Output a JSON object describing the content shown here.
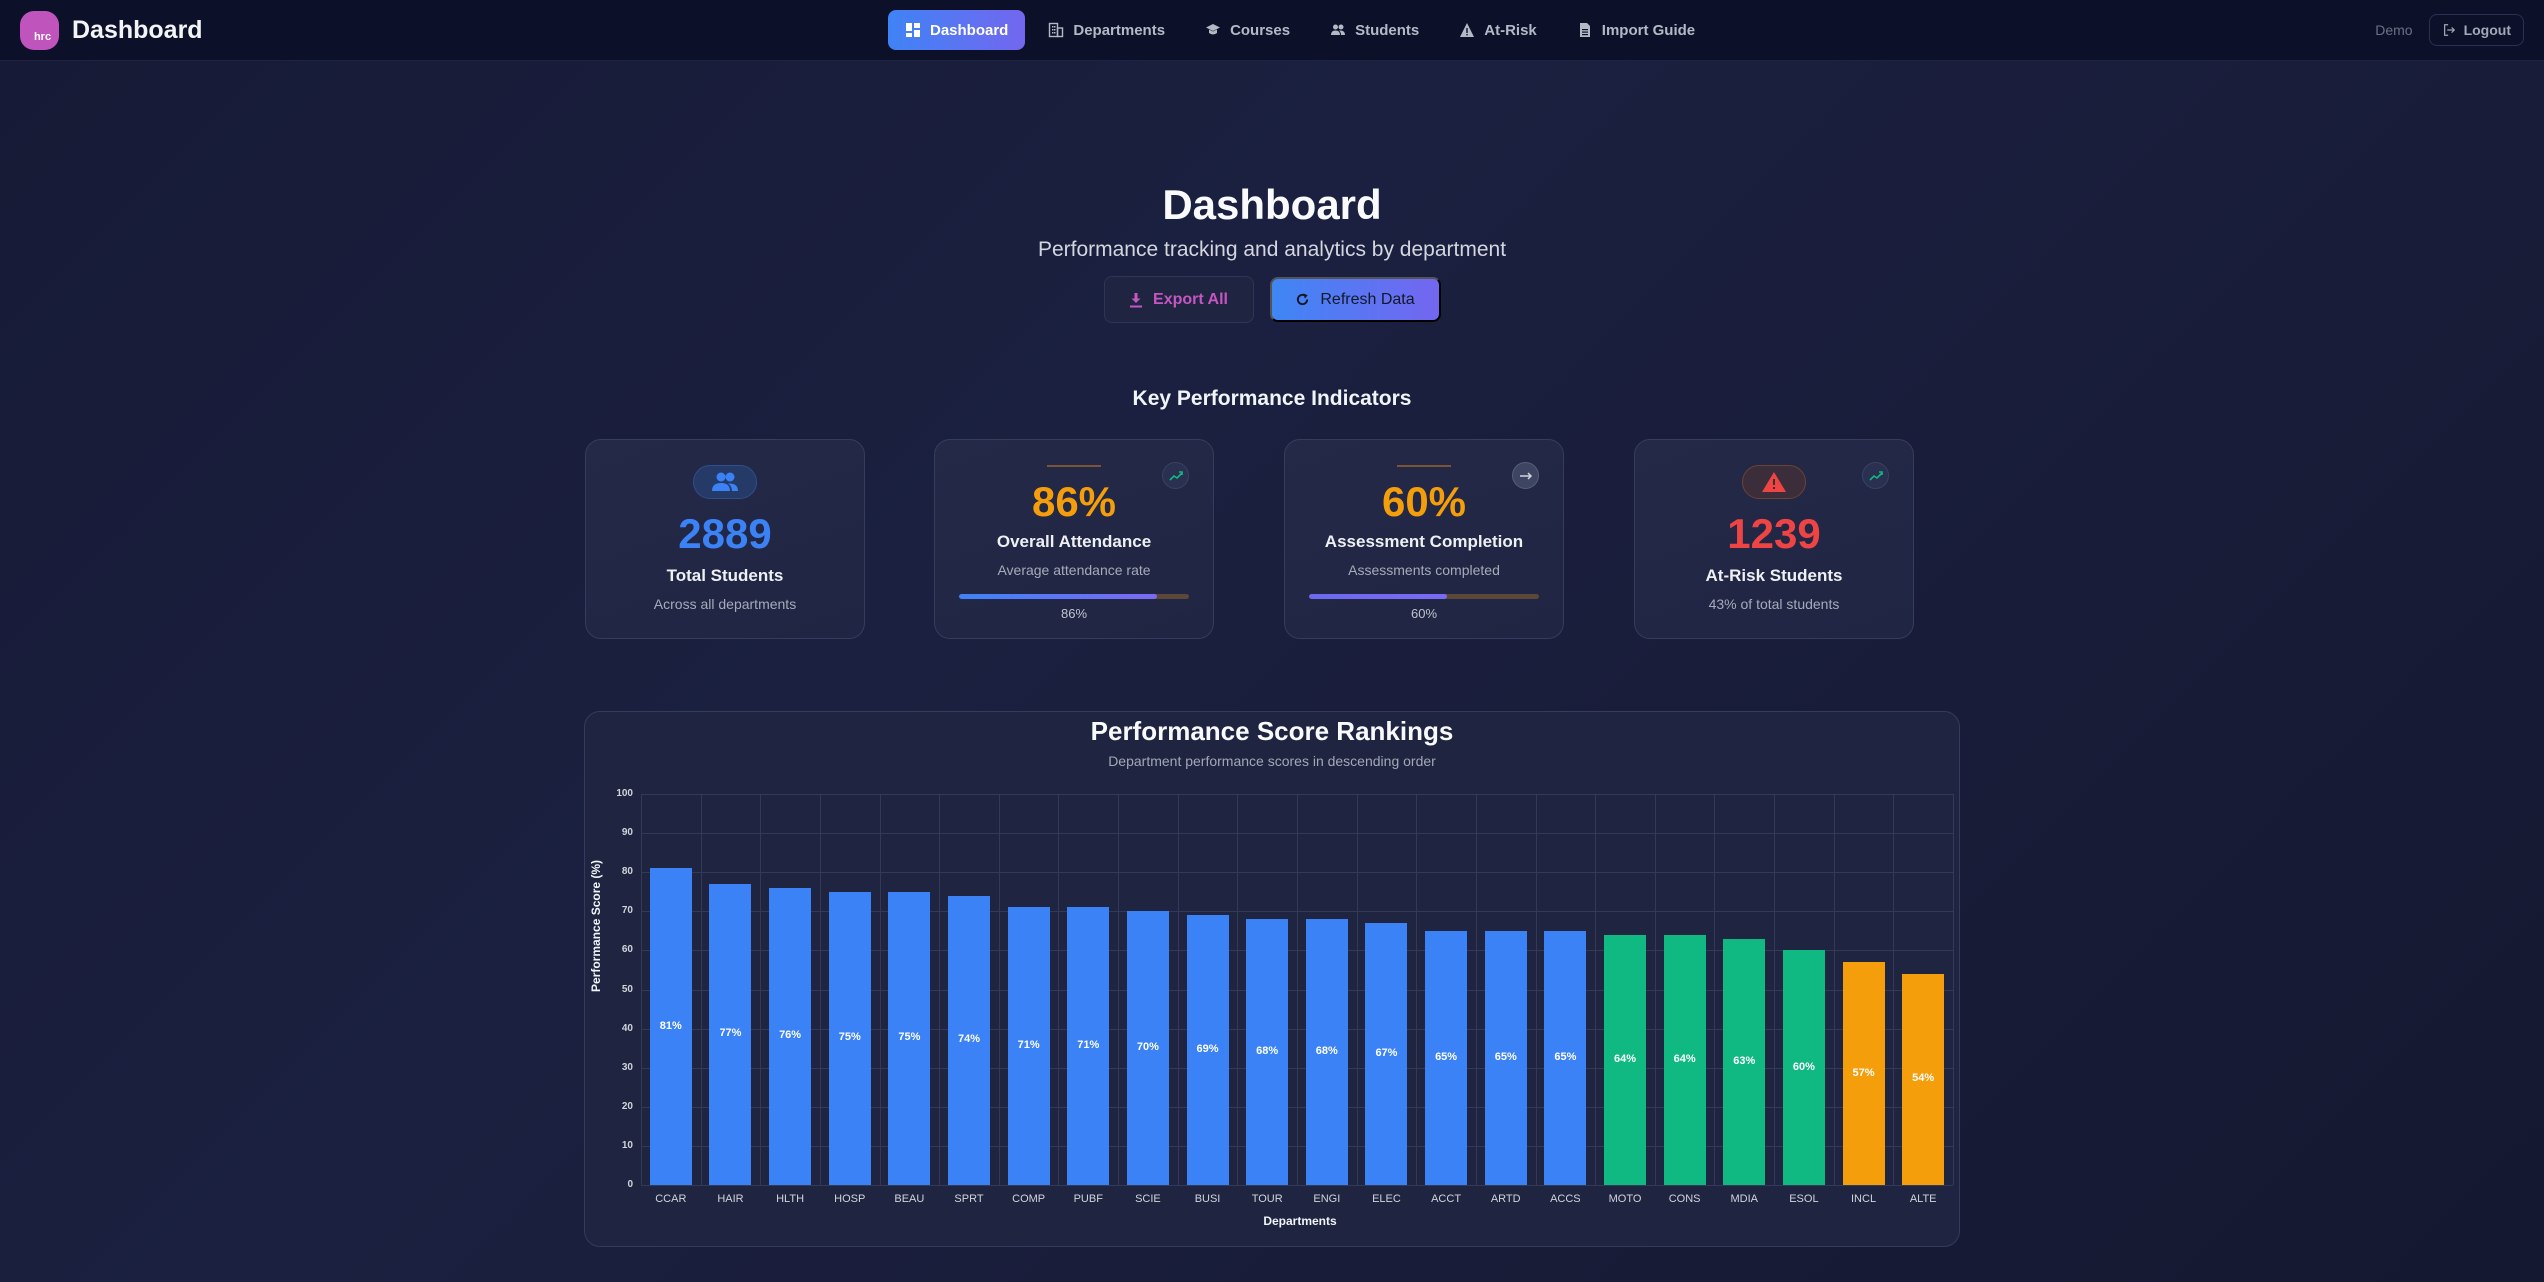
{
  "header": {
    "logo_text": "hrc",
    "title": "Dashboard",
    "nav": [
      {
        "label": "Dashboard",
        "icon": "grid-icon",
        "active": true
      },
      {
        "label": "Departments",
        "icon": "building-icon",
        "active": false
      },
      {
        "label": "Courses",
        "icon": "graduation-cap-icon",
        "active": false
      },
      {
        "label": "Students",
        "icon": "users-icon",
        "active": false
      },
      {
        "label": "At-Risk",
        "icon": "warning-triangle-icon",
        "active": false
      },
      {
        "label": "Import Guide",
        "icon": "document-icon",
        "active": false
      }
    ],
    "user": "Demo",
    "logout_label": "Logout"
  },
  "hero": {
    "title": "Dashboard",
    "subtitle": "Performance tracking and analytics by department",
    "export_label": "Export All",
    "refresh_label": "Refresh Data"
  },
  "kpi": {
    "section_title": "Key Performance Indicators",
    "cards": [
      {
        "value": "2889",
        "label": "Total Students",
        "desc": "Across all departments",
        "color": "#3b82f6",
        "icon": "users-icon"
      },
      {
        "value": "86%",
        "label": "Overall Attendance",
        "desc": "Average attendance rate",
        "progress": 86,
        "progress_text": "86%",
        "color": "#f59e0b",
        "trend": "trending-up-icon"
      },
      {
        "value": "60%",
        "label": "Assessment Completion",
        "desc": "Assessments completed",
        "progress": 60,
        "progress_text": "60%",
        "color": "#f59e0b",
        "trend": "arrow-right-icon"
      },
      {
        "value": "1239",
        "label": "At-Risk Students",
        "desc": "43% of total students",
        "color": "#ef4444",
        "icon": "warning-triangle-icon",
        "trend": "trending-up-icon"
      }
    ]
  },
  "chart": {
    "title": "Performance Score Rankings",
    "subtitle": "Department performance scores in descending order"
  },
  "chart_data": {
    "type": "bar",
    "title": "Performance Score Rankings",
    "subtitle": "Department performance scores in descending order",
    "xlabel": "Departments",
    "ylabel": "Performance Score (%)",
    "ylim": [
      0,
      100
    ],
    "yticks": [
      0,
      10,
      20,
      30,
      40,
      50,
      60,
      70,
      80,
      90,
      100
    ],
    "grid": true,
    "legend": null,
    "categories": [
      "CCAR",
      "HAIR",
      "HLTH",
      "HOSP",
      "BEAU",
      "SPRT",
      "COMP",
      "PUBF",
      "SCIE",
      "BUSI",
      "TOUR",
      "ENGI",
      "ELEC",
      "ACCT",
      "ARTD",
      "ACCS",
      "MOTO",
      "CONS",
      "MDIA",
      "ESOL",
      "INCL",
      "ALTE"
    ],
    "values": [
      81,
      77,
      76,
      75,
      75,
      74,
      71,
      71,
      70,
      69,
      68,
      68,
      67,
      65,
      65,
      65,
      64,
      64,
      63,
      60,
      57,
      54
    ],
    "labels": [
      "81%",
      "77%",
      "76%",
      "75%",
      "75%",
      "74%",
      "71%",
      "71%",
      "70%",
      "69%",
      "68%",
      "68%",
      "67%",
      "65%",
      "65%",
      "65%",
      "64%",
      "64%",
      "63%",
      "60%",
      "57%",
      "54%"
    ],
    "colors": [
      "#3b82f6",
      "#3b82f6",
      "#3b82f6",
      "#3b82f6",
      "#3b82f6",
      "#3b82f6",
      "#3b82f6",
      "#3b82f6",
      "#3b82f6",
      "#3b82f6",
      "#3b82f6",
      "#3b82f6",
      "#3b82f6",
      "#3b82f6",
      "#3b82f6",
      "#3b82f6",
      "#10b981",
      "#10b981",
      "#10b981",
      "#10b981",
      "#f59e0b",
      "#f59e0b"
    ]
  }
}
